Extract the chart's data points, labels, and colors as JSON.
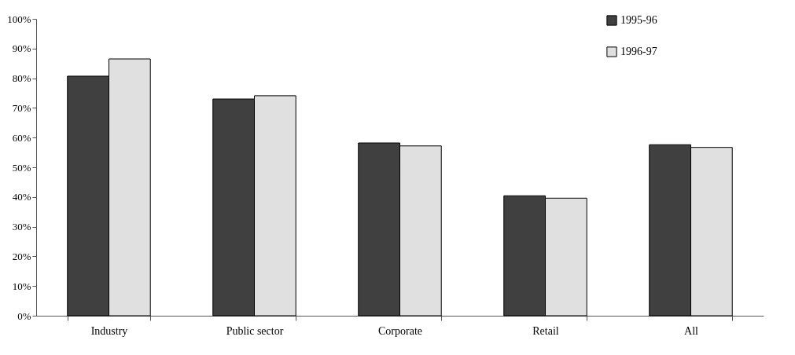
{
  "chart_data": {
    "type": "bar",
    "categories": [
      "Industry",
      "Public sector",
      "Corporate",
      "Retail",
      "All"
    ],
    "series": [
      {
        "name": "1995-96",
        "color": "#404040",
        "values": [
          80.7,
          73.0,
          58.2,
          40.4,
          57.6
        ]
      },
      {
        "name": "1996-97",
        "color": "#e0e0e0",
        "values": [
          86.5,
          74.1,
          57.2,
          39.6,
          56.7
        ]
      }
    ],
    "ylim": [
      0,
      100
    ],
    "yticks": [
      {
        "value": 0,
        "label": "0%"
      },
      {
        "value": 10,
        "label": "10%"
      },
      {
        "value": 20,
        "label": "20%"
      },
      {
        "value": 30,
        "label": "30%"
      },
      {
        "value": 40,
        "label": "40%"
      },
      {
        "value": 50,
        "label": "50%"
      },
      {
        "value": 60,
        "label": "60%"
      },
      {
        "value": 70,
        "label": "70%"
      },
      {
        "value": 80,
        "label": "80%"
      },
      {
        "value": 90,
        "label": "90%"
      },
      {
        "value": 100,
        "label": "100%"
      }
    ],
    "grid": false,
    "legend": "top right"
  }
}
